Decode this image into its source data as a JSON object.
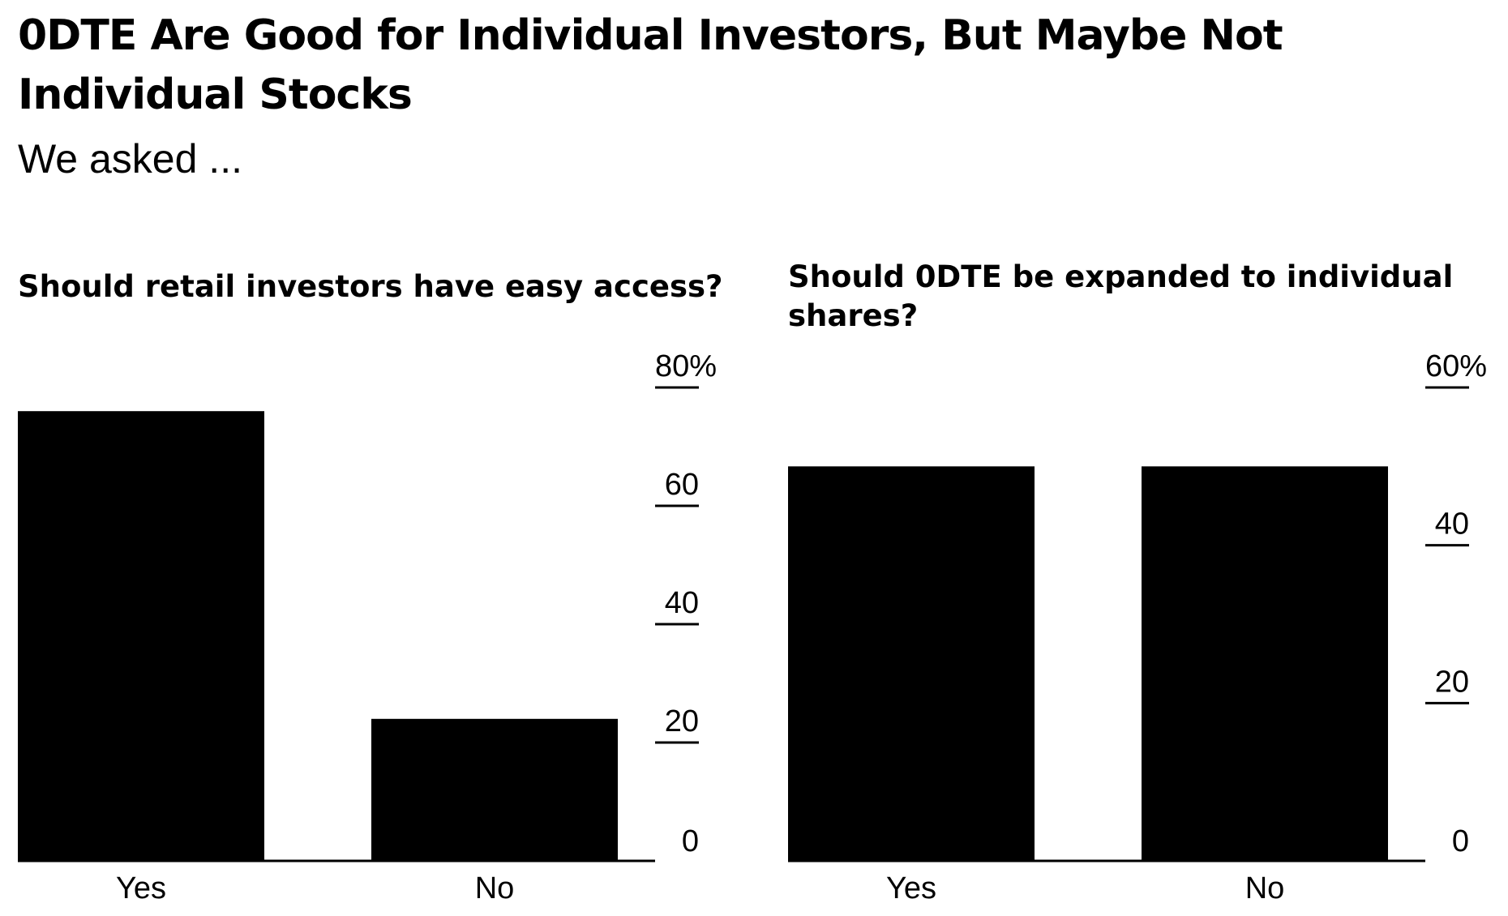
{
  "headline": "0DTE Are Good for Individual Investors, But Maybe Not Individual Stocks",
  "subtitle": "We asked ...",
  "colors": {
    "bar": "#000000",
    "text": "#000000",
    "background": "#ffffff"
  },
  "chart_data": [
    {
      "type": "bar",
      "title": "Should retail investors have easy access?",
      "categories": [
        "Yes",
        "No"
      ],
      "values": [
        76,
        24
      ],
      "ylim": [
        0,
        80
      ],
      "yticks": [
        0,
        20,
        40,
        60,
        80
      ],
      "ytick_labels": [
        "0",
        "20",
        "40",
        "60",
        "80%"
      ],
      "axis_position": "right",
      "grid": false,
      "legend": "none"
    },
    {
      "type": "bar",
      "title": "Should 0DTE be expanded to individual shares?",
      "categories": [
        "Yes",
        "No"
      ],
      "values": [
        50,
        50
      ],
      "ylim": [
        0,
        60
      ],
      "yticks": [
        0,
        20,
        40,
        60
      ],
      "ytick_labels": [
        "0",
        "20",
        "40",
        "60%"
      ],
      "axis_position": "right",
      "grid": false,
      "legend": "none"
    }
  ]
}
